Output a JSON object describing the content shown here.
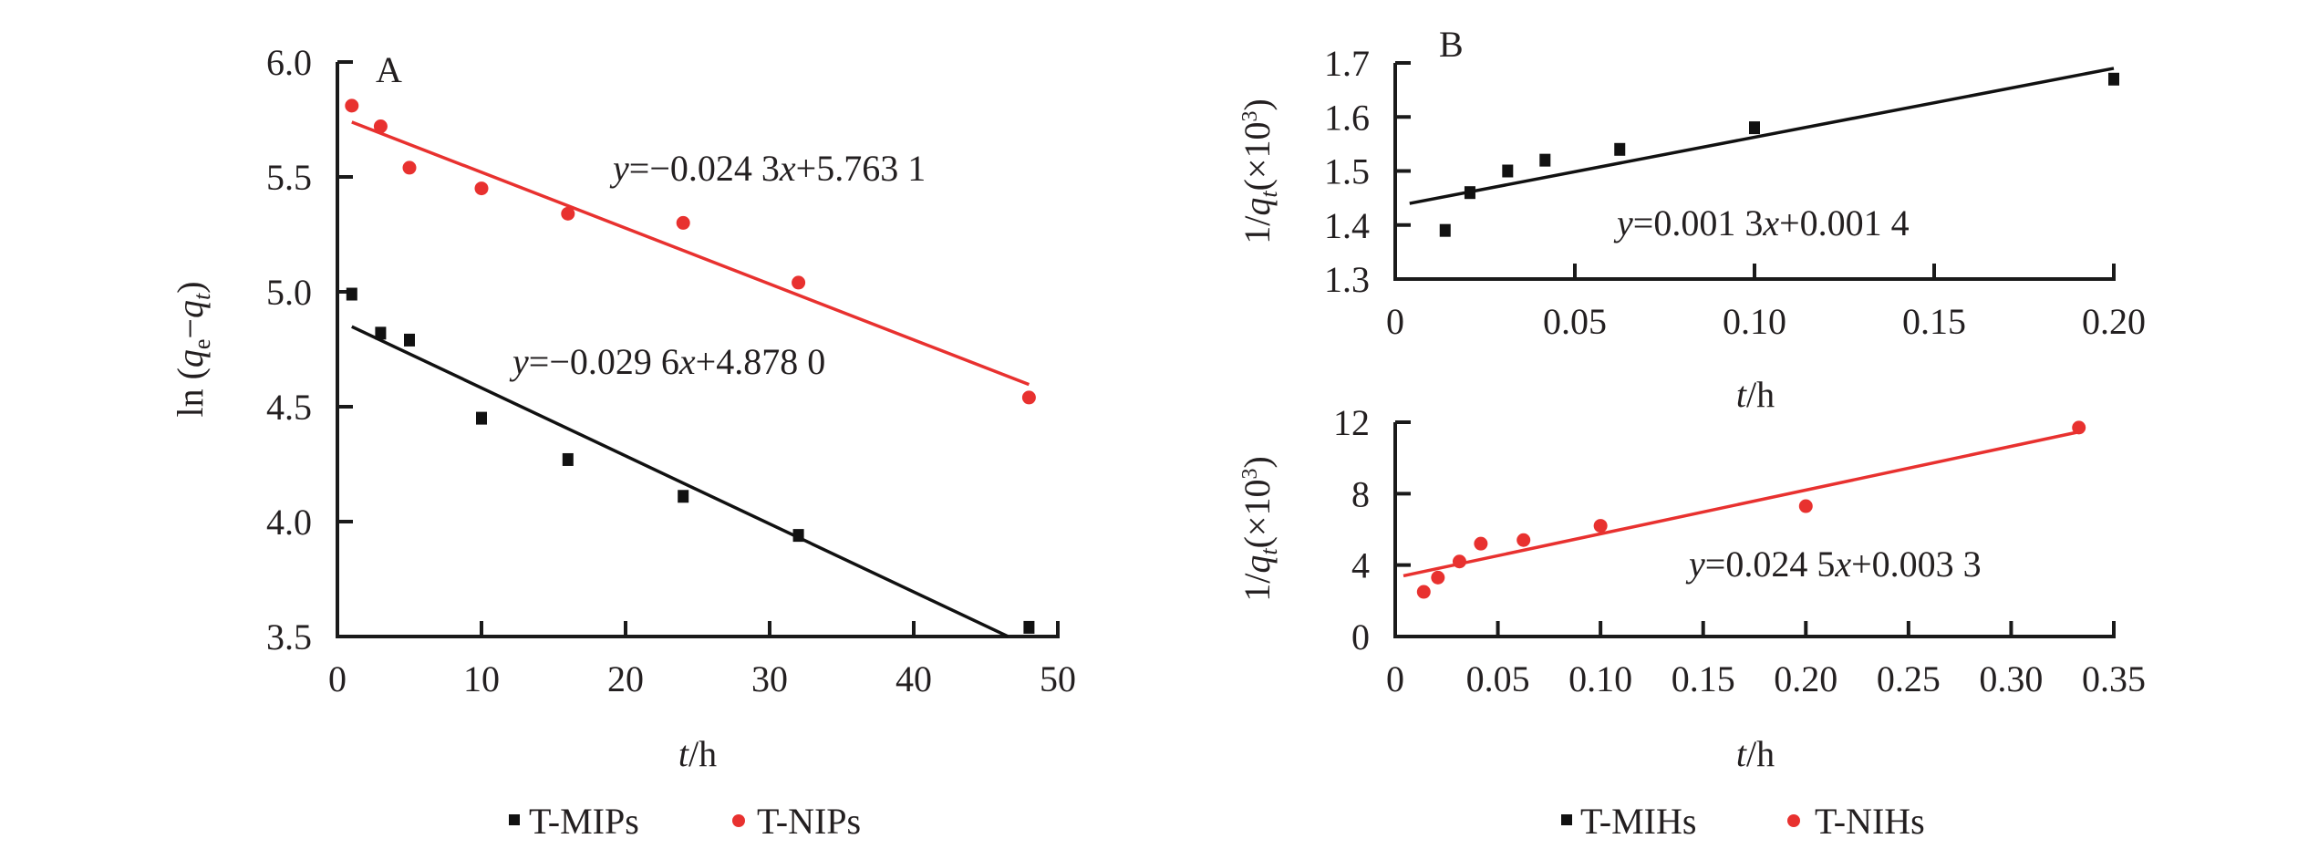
{
  "colors": {
    "black": "#111111",
    "red": "#e8312f",
    "axis": "#1a1a1a"
  },
  "chart_data": [
    {
      "panel": "A",
      "type": "scatter",
      "title": "",
      "xlabel_italic": "t",
      "xlabel_rest": "/h",
      "ylabel_pre": "ln (",
      "ylabel_q": "q",
      "ylabel_sub_e": "e",
      "ylabel_minus": "−",
      "ylabel_sub_t": "t",
      "ylabel_post": ")",
      "xlim": [
        0,
        50
      ],
      "ylim": [
        3.5,
        6.0
      ],
      "xticks": [
        0,
        10,
        20,
        30,
        40,
        50
      ],
      "xtick_labels": [
        "0",
        "10",
        "20",
        "30",
        "40",
        "50"
      ],
      "yticks": [
        3.5,
        4.0,
        4.5,
        5.0,
        5.5,
        6.0
      ],
      "ytick_labels": [
        "3.5",
        "4.0",
        "4.5",
        "5.0",
        "5.5",
        "6.0"
      ],
      "grid": false,
      "legend_position": "bottom",
      "series": [
        {
          "name": "T-MIPs",
          "marker": "square",
          "color": "#111111",
          "x": [
            1,
            3,
            5,
            10,
            16,
            24,
            32,
            48
          ],
          "y": [
            4.99,
            4.82,
            4.79,
            4.45,
            4.27,
            4.11,
            3.94,
            3.54
          ],
          "fit": {
            "slope": -0.0296,
            "intercept": 4.878,
            "x_range": [
              1,
              46.55
            ]
          },
          "equation_y": "y",
          "equation_rest": "=−0.029 6",
          "equation_x": "x",
          "equation_tail": "+4.878 0"
        },
        {
          "name": "T-NIPs",
          "marker": "circle",
          "color": "#e8312f",
          "x": [
            1,
            3,
            5,
            10,
            16,
            24,
            32,
            48
          ],
          "y": [
            5.81,
            5.72,
            5.54,
            5.45,
            5.34,
            5.3,
            5.04,
            4.54
          ],
          "fit": {
            "slope": -0.0243,
            "intercept": 5.7631,
            "x_range": [
              1,
              48
            ]
          },
          "equation_y": "y",
          "equation_rest": "=−0.024 3",
          "equation_x": "x",
          "equation_tail": "+5.763 1"
        }
      ]
    },
    {
      "panel": "B",
      "type": "scatter",
      "xlabel_italic": "t",
      "xlabel_rest": "/h",
      "ylabel_pre": "1/",
      "ylabel_q": "q",
      "ylabel_sub_t": "t",
      "ylabel_post": "(×10",
      "ylabel_sup": "3",
      "ylabel_close": ")",
      "xlim": [
        0,
        0.2
      ],
      "ylim": [
        1.3,
        1.7
      ],
      "xticks": [
        0,
        0.05,
        0.1,
        0.15,
        0.2
      ],
      "xtick_labels": [
        "0",
        "0.05",
        "0.10",
        "0.15",
        "0.20"
      ],
      "yticks": [
        1.3,
        1.4,
        1.5,
        1.6,
        1.7
      ],
      "ytick_labels": [
        "1.3",
        "1.4",
        "1.5",
        "1.6",
        "1.7"
      ],
      "grid": false,
      "series": [
        {
          "name": "T-MIHs",
          "marker": "square",
          "color": "#111111",
          "x": [
            0.0139,
            0.0208,
            0.0313,
            0.0417,
            0.0625,
            0.1,
            0.2
          ],
          "y": [
            1.39,
            1.46,
            1.5,
            1.52,
            1.54,
            1.58,
            1.67
          ],
          "fit": {
            "y_start": 1.44,
            "y_end": 1.69,
            "x_range": [
              0.004,
              0.2
            ]
          },
          "equation_y": "y",
          "equation_rest": "=0.001 3",
          "equation_x": "x",
          "equation_tail": "+0.001 4"
        }
      ]
    },
    {
      "panel": "B-lower",
      "type": "scatter",
      "xlabel_italic": "t",
      "xlabel_rest": "/h",
      "ylabel_pre": "1/",
      "ylabel_q": "q",
      "ylabel_sub_t": "t",
      "ylabel_post": "(×10",
      "ylabel_sup": "3",
      "ylabel_close": ")",
      "xlim": [
        0,
        0.35
      ],
      "ylim": [
        0,
        12
      ],
      "xticks": [
        0,
        0.05,
        0.1,
        0.15,
        0.2,
        0.25,
        0.3,
        0.35
      ],
      "xtick_labels": [
        "0",
        "0.05",
        "0.10",
        "0.15",
        "0.20",
        "0.25",
        "0.30",
        "0.35"
      ],
      "yticks": [
        0,
        4,
        8,
        12
      ],
      "ytick_labels": [
        "0",
        "4",
        "8",
        "12"
      ],
      "grid": false,
      "legend_position": "bottom",
      "series": [
        {
          "name": "T-NIHs",
          "marker": "circle",
          "color": "#e8312f",
          "x": [
            0.0139,
            0.0208,
            0.0313,
            0.0417,
            0.0625,
            0.1,
            0.2,
            0.333
          ],
          "y": [
            2.5,
            3.3,
            4.2,
            5.2,
            5.4,
            6.2,
            7.3,
            11.7
          ],
          "fit": {
            "slope": 24.5,
            "intercept": 3.3,
            "x_range": [
              0.004,
              0.333
            ]
          },
          "equation_y": "y",
          "equation_rest": "=0.024 5",
          "equation_x": "x",
          "equation_tail": "+0.003 3"
        }
      ]
    }
  ],
  "legend_A": [
    "T-MIPs",
    "T-NIPs"
  ],
  "legend_B": [
    "T-MIHs",
    "T-NIHs"
  ]
}
